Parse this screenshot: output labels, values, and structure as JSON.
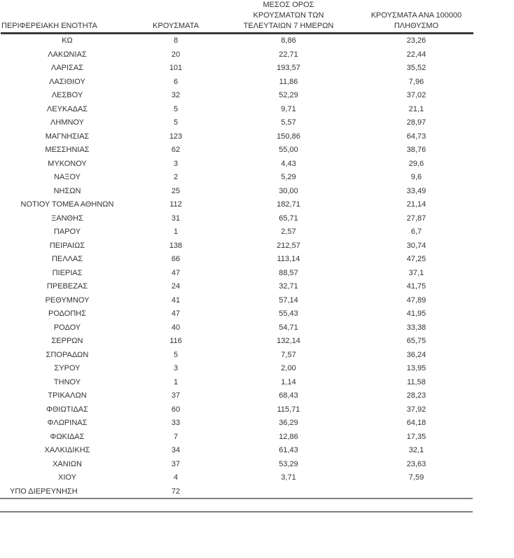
{
  "table": {
    "columns": [
      {
        "id": "region",
        "lines": [
          "ΠΕΡΙΦΕΡΕΙΑΚΗ ΕΝΟΤΗΤΑ"
        ]
      },
      {
        "id": "cases",
        "lines": [
          "ΚΡΟΥΣΜΑΤΑ"
        ]
      },
      {
        "id": "avg7",
        "lines": [
          "ΜΕΣΟΣ ΟΡΟΣ",
          "ΚΡΟΥΣΜΑΤΩΝ ΤΩΝ",
          "ΤΕΛΕΥΤΑΙΩΝ 7 ΗΜΕΡΩΝ"
        ]
      },
      {
        "id": "per100k",
        "lines": [
          "ΚΡΟΥΣΜΑΤΑ ΑΝΑ 100000",
          "ΠΛΗΘΥΣΜΟ"
        ]
      }
    ],
    "rows": [
      {
        "region": "ΚΩ",
        "cases": "8",
        "avg7": "8,86",
        "per100k": "23,26"
      },
      {
        "region": "ΛΑΚΩΝΙΑΣ",
        "cases": "20",
        "avg7": "22,71",
        "per100k": "22,44"
      },
      {
        "region": "ΛΑΡΙΣΑΣ",
        "cases": "101",
        "avg7": "193,57",
        "per100k": "35,52"
      },
      {
        "region": "ΛΑΣΙΘΙΟΥ",
        "cases": "6",
        "avg7": "11,86",
        "per100k": "7,96"
      },
      {
        "region": "ΛΕΣΒΟΥ",
        "cases": "32",
        "avg7": "52,29",
        "per100k": "37,02"
      },
      {
        "region": "ΛΕΥΚΑΔΑΣ",
        "cases": "5",
        "avg7": "9,71",
        "per100k": "21,1"
      },
      {
        "region": "ΛΗΜΝΟΥ",
        "cases": "5",
        "avg7": "5,57",
        "per100k": "28,97"
      },
      {
        "region": "ΜΑΓΝΗΣΙΑΣ",
        "cases": "123",
        "avg7": "150,86",
        "per100k": "64,73"
      },
      {
        "region": "ΜΕΣΣΗΝΙΑΣ",
        "cases": "62",
        "avg7": "55,00",
        "per100k": "38,76"
      },
      {
        "region": "ΜΥΚΟΝΟΥ",
        "cases": "3",
        "avg7": "4,43",
        "per100k": "29,6"
      },
      {
        "region": "ΝΑΞΟΥ",
        "cases": "2",
        "avg7": "5,29",
        "per100k": "9,6"
      },
      {
        "region": "ΝΗΣΩΝ",
        "cases": "25",
        "avg7": "30,00",
        "per100k": "33,49"
      },
      {
        "region": "ΝΟΤΙΟΥ ΤΟΜΕΑ ΑΘΗΝΩΝ",
        "cases": "112",
        "avg7": "182,71",
        "per100k": "21,14"
      },
      {
        "region": "ΞΑΝΘΗΣ",
        "cases": "31",
        "avg7": "65,71",
        "per100k": "27,87"
      },
      {
        "region": "ΠΑΡΟΥ",
        "cases": "1",
        "avg7": "2,57",
        "per100k": "6,7"
      },
      {
        "region": "ΠΕΙΡΑΙΩΣ",
        "cases": "138",
        "avg7": "212,57",
        "per100k": "30,74"
      },
      {
        "region": "ΠΕΛΛΑΣ",
        "cases": "66",
        "avg7": "113,14",
        "per100k": "47,25"
      },
      {
        "region": "ΠΙΕΡΙΑΣ",
        "cases": "47",
        "avg7": "88,57",
        "per100k": "37,1"
      },
      {
        "region": "ΠΡΕΒΕΖΑΣ",
        "cases": "24",
        "avg7": "32,71",
        "per100k": "41,75"
      },
      {
        "region": "ΡΕΘΥΜΝΟΥ",
        "cases": "41",
        "avg7": "57,14",
        "per100k": "47,89"
      },
      {
        "region": "ΡΟΔΟΠΗΣ",
        "cases": "47",
        "avg7": "55,43",
        "per100k": "41,95"
      },
      {
        "region": "ΡΟΔΟΥ",
        "cases": "40",
        "avg7": "54,71",
        "per100k": "33,38"
      },
      {
        "region": "ΣΕΡΡΩΝ",
        "cases": "116",
        "avg7": "132,14",
        "per100k": "65,75"
      },
      {
        "region": "ΣΠΟΡΑΔΩΝ",
        "cases": "5",
        "avg7": "7,57",
        "per100k": "36,24"
      },
      {
        "region": "ΣΥΡΟΥ",
        "cases": "3",
        "avg7": "2,00",
        "per100k": "13,95"
      },
      {
        "region": "ΤΗΝΟΥ",
        "cases": "1",
        "avg7": "1,14",
        "per100k": "11,58"
      },
      {
        "region": "ΤΡΙΚΑΛΩΝ",
        "cases": "37",
        "avg7": "68,43",
        "per100k": "28,23"
      },
      {
        "region": "ΦΘΙΩΤΙΔΑΣ",
        "cases": "60",
        "avg7": "115,71",
        "per100k": "37,92"
      },
      {
        "region": "ΦΛΩΡΙΝΑΣ",
        "cases": "33",
        "avg7": "36,29",
        "per100k": "64,18"
      },
      {
        "region": "ΦΩΚΙΔΑΣ",
        "cases": "7",
        "avg7": "12,86",
        "per100k": "17,35"
      },
      {
        "region": "ΧΑΛΚΙΔΙΚΗΣ",
        "cases": "34",
        "avg7": "61,43",
        "per100k": "32,1"
      },
      {
        "region": "ΧΑΝΙΩΝ",
        "cases": "37",
        "avg7": "53,29",
        "per100k": "23,63"
      },
      {
        "region": "ΧΙΟΥ",
        "cases": "4",
        "avg7": "3,71",
        "per100k": "7,59"
      }
    ],
    "footer_row": {
      "region": "ΥΠΟ ΔΙΕΡΕΥΝΗΣΗ",
      "cases": "72",
      "avg7": "",
      "per100k": ""
    },
    "colors": {
      "text": "#333333",
      "header_rule": "#3a3a3a",
      "bottom_rule": "#7f7f7f"
    }
  }
}
